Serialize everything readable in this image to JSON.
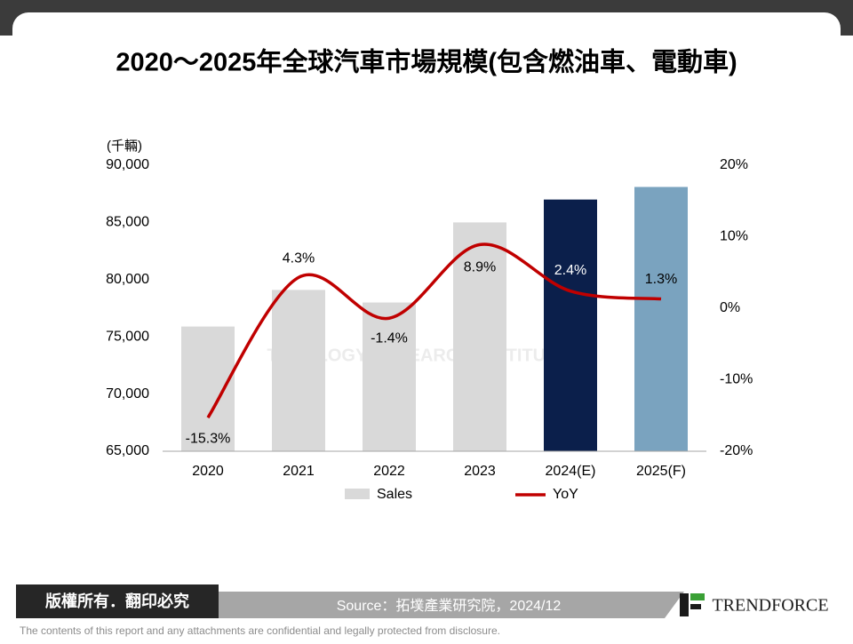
{
  "chart_data": {
    "type": "bar-line",
    "title": "2020～2025年全球汽車市場規模(包含燃油車、電動車)",
    "y_label": "(千輛)",
    "watermark": "TOPOLOGY RESEARCH INSTITUTE",
    "categories": [
      "2020",
      "2021",
      "2022",
      "2023",
      "2024(E)",
      "2025(F)"
    ],
    "series": [
      {
        "name": "Sales",
        "type": "bar",
        "color": "#d9d9d9",
        "colors": [
          "#d9d9d9",
          "#d9d9d9",
          "#d9d9d9",
          "#d9d9d9",
          "#0b1f4b",
          "#7aa3bf"
        ],
        "values": [
          75900,
          79100,
          78000,
          85000,
          87000,
          88100
        ]
      },
      {
        "name": "YoY",
        "type": "line",
        "axis": "y2",
        "color": "#c00000",
        "values": [
          -15.3,
          4.3,
          -1.4,
          8.9,
          2.4,
          1.3
        ],
        "value_labels": [
          "-15.3%",
          "4.3%",
          "-1.4%",
          "8.9%",
          "2.4%",
          "1.3%"
        ]
      }
    ],
    "ylim": [
      65000,
      90000
    ],
    "yticks": [
      {
        "value": 65000,
        "label": "65,000"
      },
      {
        "value": 70000,
        "label": "70,000"
      },
      {
        "value": 75000,
        "label": "75,000"
      },
      {
        "value": 80000,
        "label": "80,000"
      },
      {
        "value": 85000,
        "label": "85,000"
      },
      {
        "value": 90000,
        "label": "90,000"
      }
    ],
    "y2lim": [
      -20,
      20
    ],
    "y2ticks": [
      {
        "value": -20,
        "label": "-20%"
      },
      {
        "value": -10,
        "label": "-10%"
      },
      {
        "value": 0,
        "label": "0%"
      },
      {
        "value": 10,
        "label": "10%"
      },
      {
        "value": 20,
        "label": "20%"
      }
    ],
    "grid": false,
    "legend": "bottom"
  },
  "footer": {
    "copyright": "版權所有．翻印必究",
    "source": "Source：拓墣產業研究院，2024/12",
    "logo": "TRENDFORCE",
    "disclaimer": "The contents of this report and any attachments are confidential and legally protected from disclosure."
  }
}
